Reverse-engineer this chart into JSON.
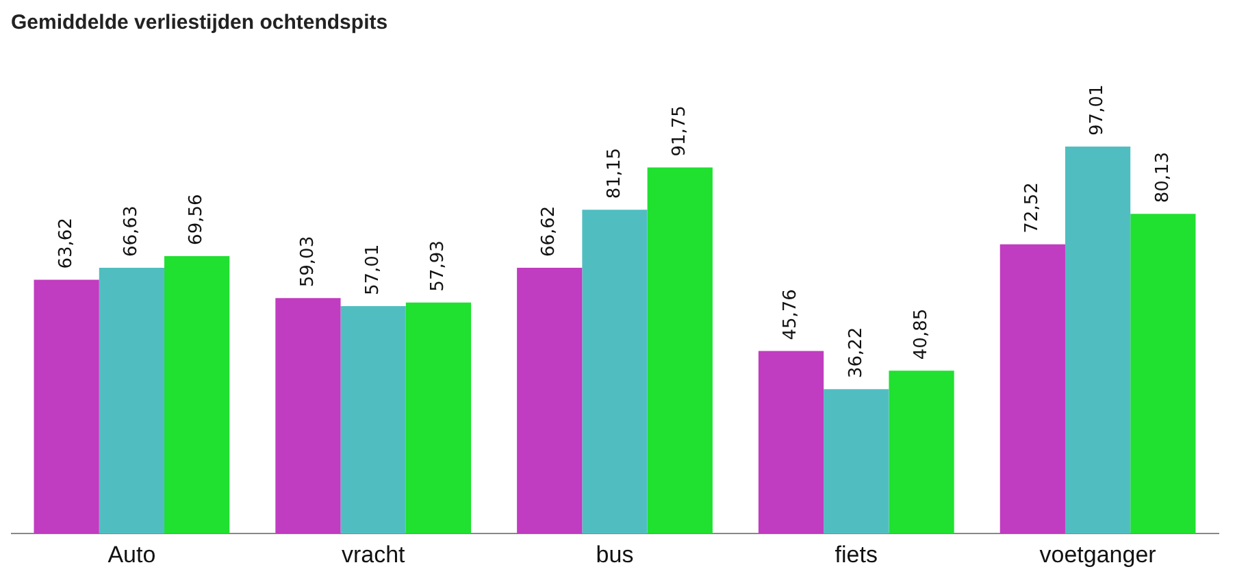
{
  "chart_data": {
    "type": "bar",
    "title": "Gemiddelde verliestijden ochtendspits",
    "categories": [
      "Auto",
      "vracht",
      "bus",
      "fiets",
      "voetganger"
    ],
    "series": [
      {
        "color": "#c03cc0",
        "values": [
          63.62,
          59.03,
          66.62,
          45.76,
          72.52
        ],
        "value_labels": [
          "63,62",
          "59,03",
          "66,62",
          "45,76",
          "72,52"
        ]
      },
      {
        "color": "#50bec0",
        "values": [
          66.63,
          57.01,
          81.15,
          36.22,
          97.01
        ],
        "value_labels": [
          "66,63",
          "57,01",
          "81,15",
          "36,22",
          "97,01"
        ]
      },
      {
        "color": "#20e030",
        "values": [
          69.56,
          57.93,
          91.75,
          40.85,
          80.13
        ],
        "value_labels": [
          "69,56",
          "57,93",
          "91,75",
          "40,85",
          "80,13"
        ]
      }
    ],
    "tick_labels": "x",
    "grid": false,
    "legend": false
  }
}
